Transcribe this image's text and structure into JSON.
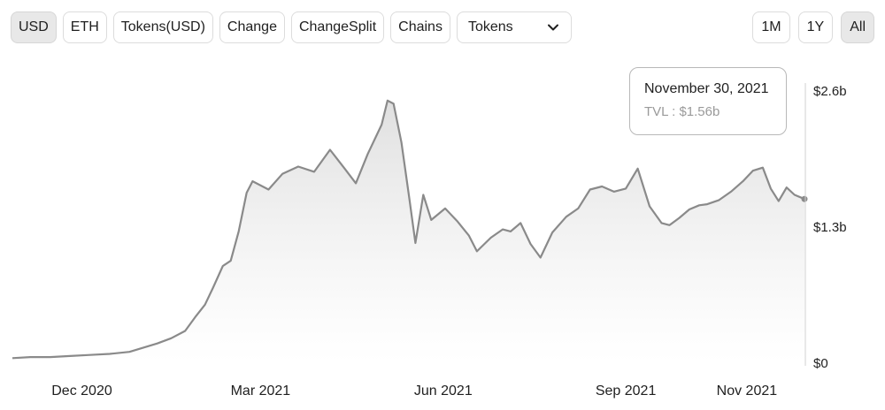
{
  "toolbar": {
    "buttons": [
      {
        "label": "USD",
        "active": true
      },
      {
        "label": "ETH",
        "active": false
      },
      {
        "label": "Tokens(USD)",
        "active": false
      },
      {
        "label": "Change",
        "active": false
      },
      {
        "label": "ChangeSplit",
        "active": false
      },
      {
        "label": "Chains",
        "active": false
      }
    ],
    "select": {
      "value": "Tokens",
      "icon": "chevron-down-icon"
    }
  },
  "range": {
    "buttons": [
      {
        "label": "1M",
        "active": false
      },
      {
        "label": "1Y",
        "active": false
      },
      {
        "label": "All",
        "active": true
      }
    ]
  },
  "tooltip": {
    "date": "November 30, 2021",
    "value": "TVL : $1.56b"
  },
  "chart_data": {
    "type": "area",
    "x_ticks": [
      "Dec 2020",
      "Mar 2021",
      "Jun 2021",
      "Sep 2021",
      "Nov 2021"
    ],
    "y_ticks": [
      "$0",
      "$1.3b",
      "$2.6b"
    ],
    "ylim": [
      0,
      2.6
    ],
    "y_unit": "billion USD",
    "grid": false,
    "colors": {
      "line": "#8a8a8a",
      "fill_top": "#dedede",
      "fill_bottom": "#ffffff",
      "axis": "#d0d0d0"
    },
    "points": [
      [
        "2020-10-27",
        0.04
      ],
      [
        "2020-11-05",
        0.05
      ],
      [
        "2020-11-15",
        0.05
      ],
      [
        "2020-11-25",
        0.06
      ],
      [
        "2020-12-05",
        0.07
      ],
      [
        "2020-12-15",
        0.08
      ],
      [
        "2020-12-25",
        0.1
      ],
      [
        "2021-01-01",
        0.14
      ],
      [
        "2021-01-08",
        0.18
      ],
      [
        "2021-01-15",
        0.23
      ],
      [
        "2021-01-22",
        0.3
      ],
      [
        "2021-01-27",
        0.43
      ],
      [
        "2021-02-01",
        0.55
      ],
      [
        "2021-02-05",
        0.71
      ],
      [
        "2021-02-10",
        0.92
      ],
      [
        "2021-02-14",
        0.97
      ],
      [
        "2021-02-18",
        1.25
      ],
      [
        "2021-02-22",
        1.62
      ],
      [
        "2021-02-25",
        1.73
      ],
      [
        "2021-03-05",
        1.65
      ],
      [
        "2021-03-12",
        1.8
      ],
      [
        "2021-03-20",
        1.87
      ],
      [
        "2021-03-28",
        1.82
      ],
      [
        "2021-04-05",
        2.03
      ],
      [
        "2021-04-12",
        1.86
      ],
      [
        "2021-04-18",
        1.71
      ],
      [
        "2021-04-24",
        1.99
      ],
      [
        "2021-05-01",
        2.27
      ],
      [
        "2021-05-04",
        2.5
      ],
      [
        "2021-05-07",
        2.47
      ],
      [
        "2021-05-11",
        2.1
      ],
      [
        "2021-05-15",
        1.56
      ],
      [
        "2021-05-18",
        1.14
      ],
      [
        "2021-05-22",
        1.6
      ],
      [
        "2021-05-26",
        1.36
      ],
      [
        "2021-06-02",
        1.47
      ],
      [
        "2021-06-08",
        1.35
      ],
      [
        "2021-06-14",
        1.21
      ],
      [
        "2021-06-18",
        1.06
      ],
      [
        "2021-06-25",
        1.19
      ],
      [
        "2021-07-01",
        1.27
      ],
      [
        "2021-07-05",
        1.25
      ],
      [
        "2021-07-10",
        1.33
      ],
      [
        "2021-07-15",
        1.13
      ],
      [
        "2021-07-20",
        1.0
      ],
      [
        "2021-07-26",
        1.24
      ],
      [
        "2021-08-02",
        1.39
      ],
      [
        "2021-08-08",
        1.47
      ],
      [
        "2021-08-14",
        1.65
      ],
      [
        "2021-08-20",
        1.68
      ],
      [
        "2021-08-26",
        1.63
      ],
      [
        "2021-09-01",
        1.66
      ],
      [
        "2021-09-07",
        1.85
      ],
      [
        "2021-09-13",
        1.49
      ],
      [
        "2021-09-19",
        1.33
      ],
      [
        "2021-09-23",
        1.31
      ],
      [
        "2021-09-28",
        1.38
      ],
      [
        "2021-10-03",
        1.46
      ],
      [
        "2021-10-08",
        1.5
      ],
      [
        "2021-10-12",
        1.51
      ],
      [
        "2021-10-18",
        1.55
      ],
      [
        "2021-10-24",
        1.63
      ],
      [
        "2021-10-30",
        1.73
      ],
      [
        "2021-11-04",
        1.83
      ],
      [
        "2021-11-09",
        1.86
      ],
      [
        "2021-11-13",
        1.66
      ],
      [
        "2021-11-17",
        1.54
      ],
      [
        "2021-11-21",
        1.67
      ],
      [
        "2021-11-25",
        1.6
      ],
      [
        "2021-11-30",
        1.56
      ]
    ],
    "tooltip_point": [
      "2021-11-30",
      1.56
    ]
  }
}
